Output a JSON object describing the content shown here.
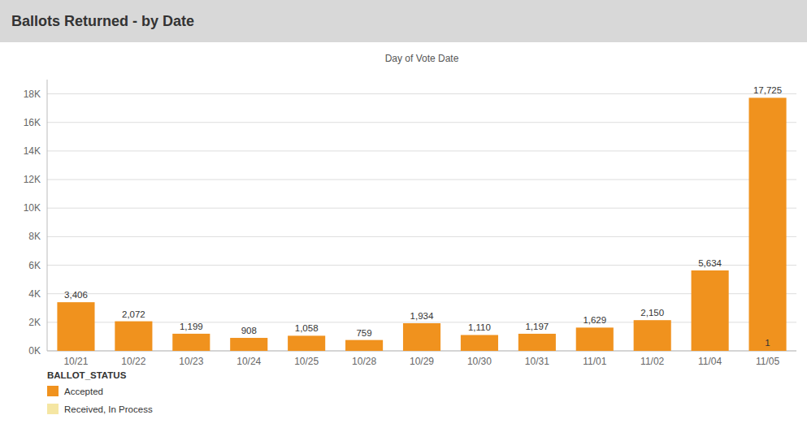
{
  "chart_data": {
    "type": "bar",
    "title": "Ballots Returned - by Date",
    "subtitle": "Day of Vote Date",
    "categories": [
      "10/21",
      "10/22",
      "10/23",
      "10/24",
      "10/25",
      "10/28",
      "10/29",
      "10/30",
      "10/31",
      "11/01",
      "11/02",
      "11/04",
      "11/05"
    ],
    "values": [
      3406,
      2072,
      1199,
      908,
      1058,
      759,
      1934,
      1110,
      1197,
      1629,
      2150,
      5634,
      17725
    ],
    "value_labels": [
      "3,406",
      "2,072",
      "1,199",
      "908",
      "1,058",
      "759",
      "1,934",
      "1,110",
      "1,197",
      "1,629",
      "2,150",
      "5,634",
      "17,725"
    ],
    "data_labels": true,
    "color": "#F0921E",
    "ylim": [
      0,
      19000
    ],
    "yticks": [
      {
        "value": 0,
        "label": "0K"
      },
      {
        "value": 2000,
        "label": "2K"
      },
      {
        "value": 4000,
        "label": "4K"
      },
      {
        "value": 6000,
        "label": "6K"
      },
      {
        "value": 8000,
        "label": "8K"
      },
      {
        "value": 10000,
        "label": "10K"
      },
      {
        "value": 12000,
        "label": "12K"
      },
      {
        "value": 14000,
        "label": "14K"
      },
      {
        "value": 16000,
        "label": "16K"
      },
      {
        "value": 18000,
        "label": "18K"
      }
    ],
    "grid": true,
    "legend": "lower left",
    "legend_title": "BALLOT_STATUS",
    "legend_items": [
      {
        "name": "Accepted",
        "color": "#F0921E"
      },
      {
        "name": "Received, In Process",
        "color": "#F5E6A3"
      }
    ],
    "annotations": [
      {
        "text": "1",
        "x": "11/05"
      }
    ]
  }
}
